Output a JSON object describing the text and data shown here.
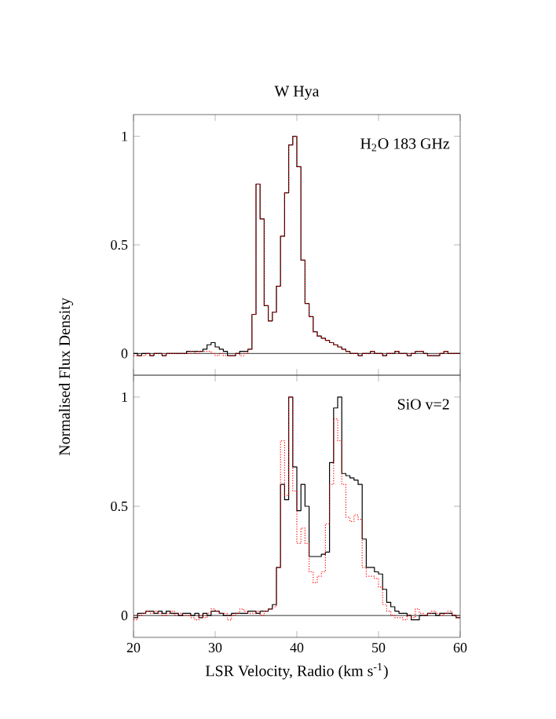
{
  "chart_data": [
    {
      "type": "step",
      "title": "W Hya",
      "ylabel": "Normalised Flux Density",
      "annotations": [
        "H$_{2}$O 183 GHz"
      ],
      "tick_labels": "y",
      "x": [
        20,
        20.5,
        21,
        21.5,
        22,
        22.5,
        23,
        23.5,
        24,
        24.5,
        25,
        25.5,
        26,
        26.5,
        27,
        27.5,
        28,
        28.5,
        29,
        29.5,
        30,
        30.5,
        31,
        31.5,
        32,
        32.5,
        33,
        33.5,
        34,
        34.5,
        35,
        35.5,
        36,
        36.5,
        37,
        37.5,
        38,
        38.5,
        39,
        39.5,
        40,
        40.5,
        41,
        41.5,
        42,
        42.5,
        43,
        43.5,
        44,
        44.5,
        45,
        45.5,
        46,
        46.5,
        47,
        47.5,
        48,
        48.5,
        49,
        49.5,
        50,
        50.5,
        51,
        51.5,
        52,
        52.5,
        53,
        53.5,
        54,
        54.5,
        55,
        55.5,
        56,
        56.5,
        57,
        57.5,
        58,
        58.5,
        59,
        59.5,
        60
      ],
      "series": [
        {
          "color": "#000000",
          "line_style": "solid",
          "values": [
            0,
            -0.01,
            0,
            0,
            -0.01,
            0,
            0,
            -0.01,
            0,
            0,
            0,
            0,
            0,
            0.01,
            0.01,
            0.01,
            0.01,
            0.02,
            0.04,
            0.05,
            0.03,
            0.02,
            0.01,
            -0.01,
            -0.01,
            0,
            0.01,
            0.01,
            0.02,
            0.18,
            0.78,
            0.62,
            0.22,
            0.15,
            0.19,
            0.31,
            0.54,
            0.74,
            0.96,
            1.0,
            0.86,
            0.43,
            0.23,
            0.17,
            0.1,
            0.08,
            0.07,
            0.06,
            0.05,
            0.04,
            0.03,
            0.02,
            0.01,
            0,
            0,
            -0.01,
            0,
            0,
            0.01,
            0,
            0,
            -0.01,
            0,
            0,
            0.01,
            0,
            0,
            -0.01,
            0,
            0.01,
            0.01,
            0,
            -0.01,
            -0.01,
            -0.01,
            0,
            0.01,
            0,
            0,
            0,
            0
          ]
        },
        {
          "color": "#ff0000",
          "line_style": "dotted",
          "values": [
            -0.01,
            -0.01,
            -0.01,
            0,
            -0.01,
            0,
            0,
            -0.01,
            0,
            0,
            0,
            0,
            0,
            0,
            0.01,
            0,
            0.01,
            0.01,
            0.01,
            0,
            -0.01,
            0,
            -0.01,
            -0.01,
            -0.01,
            0,
            -0.01,
            0,
            0.02,
            0.18,
            0.78,
            0.62,
            0.22,
            0.15,
            0.19,
            0.31,
            0.54,
            0.74,
            0.96,
            1.0,
            0.86,
            0.43,
            0.23,
            0.17,
            0.1,
            0.08,
            0.07,
            0.06,
            0.05,
            0.04,
            0.03,
            0.02,
            0.01,
            0,
            0,
            -0.01,
            0,
            0,
            0.01,
            0,
            0,
            -0.01,
            0,
            0,
            0.01,
            0,
            0,
            -0.01,
            0,
            0.01,
            0.01,
            0,
            -0.01,
            -0.01,
            -0.01,
            0,
            0.01,
            0,
            0,
            0,
            0
          ]
        }
      ],
      "xlim": [
        20,
        60
      ],
      "xticks": [
        20,
        30,
        40,
        50,
        60
      ],
      "ylim": [
        -0.1,
        1.1
      ],
      "yticks": [
        0,
        0.5,
        1
      ],
      "ref_lines": [
        {
          "axis": "y",
          "value": 0,
          "color": "#000000"
        }
      ],
      "grid": false
    },
    {
      "type": "step",
      "xlabel": "LSR Velocity, Radio (km s$^{-1}$)",
      "annotations": [
        "SiO v=2"
      ],
      "x": [
        20,
        20.5,
        21,
        21.5,
        22,
        22.5,
        23,
        23.5,
        24,
        24.5,
        25,
        25.5,
        26,
        26.5,
        27,
        27.5,
        28,
        28.5,
        29,
        29.5,
        30,
        30.5,
        31,
        31.5,
        32,
        32.5,
        33,
        33.5,
        34,
        34.5,
        35,
        35.5,
        36,
        36.5,
        37,
        37.5,
        38,
        38.5,
        39,
        39.5,
        40,
        40.5,
        41,
        41.5,
        42,
        42.5,
        43,
        43.5,
        44,
        44.5,
        45,
        45.5,
        46,
        46.5,
        47,
        47.5,
        48,
        48.5,
        49,
        49.5,
        50,
        50.5,
        51,
        51.5,
        52,
        52.5,
        53,
        53.5,
        54,
        54.5,
        55,
        55.5,
        56,
        56.5,
        57,
        57.5,
        58,
        58.5,
        59,
        59.5,
        60
      ],
      "series": [
        {
          "color": "#000000",
          "line_style": "solid",
          "values": [
            -0.01,
            0.01,
            0.01,
            0.02,
            0.02,
            0.01,
            0.02,
            0.01,
            0.02,
            0.01,
            0.01,
            0,
            0.01,
            0.01,
            0,
            0.01,
            -0.01,
            0.01,
            0,
            0.02,
            0.02,
            0.01,
            0,
            0,
            0.01,
            0.01,
            0.01,
            0.01,
            0.02,
            0.02,
            0.01,
            0.02,
            0.02,
            0.03,
            0.05,
            0.22,
            0.6,
            0.53,
            1.0,
            0.68,
            0.48,
            0.6,
            0.5,
            0.27,
            0.27,
            0.27,
            0.28,
            0.29,
            0.7,
            0.95,
            1.0,
            0.65,
            0.64,
            0.63,
            0.62,
            0.6,
            0.35,
            0.22,
            0.22,
            0.2,
            0.19,
            0.12,
            0.06,
            0.04,
            0.02,
            0.01,
            0.01,
            0,
            -0.02,
            -0.02,
            0,
            0,
            0.01,
            0.01,
            0,
            0.01,
            0.01,
            0.01,
            0,
            -0.01,
            -0.01
          ]
        },
        {
          "color": "#ff0000",
          "line_style": "dotted",
          "values": [
            -0.02,
            0,
            0.01,
            0.02,
            0.01,
            0.02,
            0.01,
            0,
            0.01,
            0.02,
            0,
            0.01,
            0,
            0,
            -0.01,
            -0.02,
            0,
            -0.01,
            0.01,
            0.03,
            0.02,
            0.01,
            0.01,
            -0.02,
            0,
            0.01,
            0.03,
            0.02,
            0.01,
            0.01,
            0.02,
            0,
            0.02,
            0.03,
            0.04,
            0.22,
            0.8,
            0.55,
            1.0,
            0.57,
            0.33,
            0.4,
            0.33,
            0.2,
            0.15,
            0.18,
            0.2,
            0.42,
            0.6,
            0.9,
            0.8,
            0.6,
            0.45,
            0.43,
            0.46,
            0.44,
            0.22,
            0.18,
            0.18,
            0.17,
            0.13,
            0.05,
            0.02,
            0,
            -0.01,
            -0.01,
            -0.02,
            0,
            -0.01,
            0.03,
            0.01,
            0,
            0.01,
            0.02,
            0.01,
            0,
            0.01,
            0.02,
            0,
            -0.01,
            -0.01
          ]
        }
      ],
      "xlim": [
        20,
        60
      ],
      "xticks": [
        20,
        30,
        40,
        50,
        60
      ],
      "ylim": [
        -0.1,
        1.1
      ],
      "yticks": [
        0,
        0.5,
        1
      ],
      "ref_lines": [
        {
          "axis": "y",
          "value": 0,
          "color": "#000000"
        }
      ],
      "grid": false
    }
  ]
}
